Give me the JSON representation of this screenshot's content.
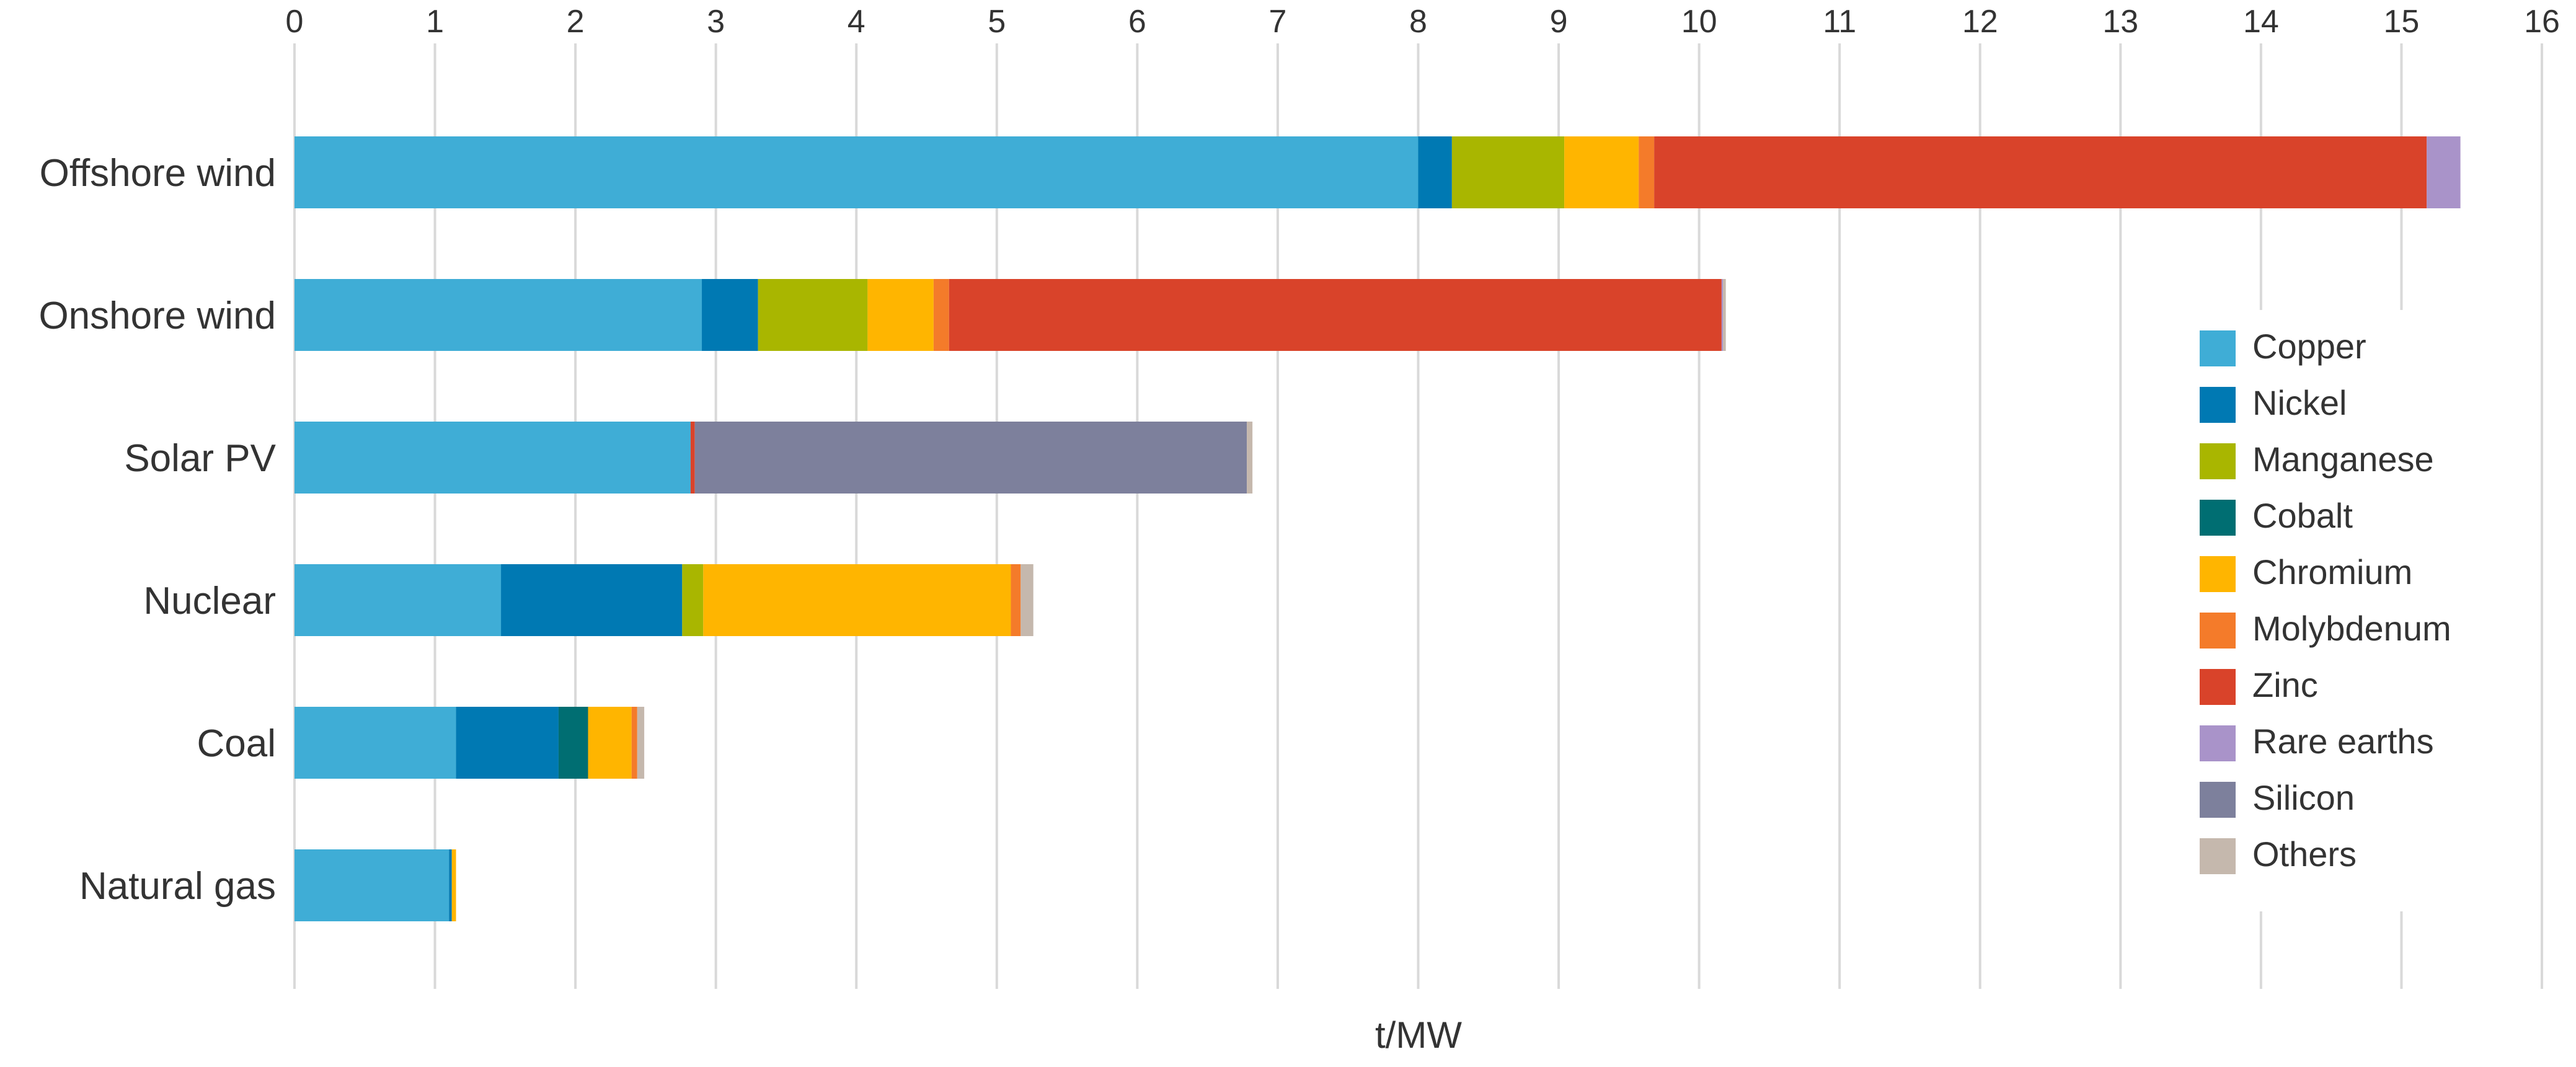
{
  "chart_data": {
    "type": "bar",
    "orientation": "horizontal",
    "stacked": true,
    "title": "",
    "xlabel": "t/MW",
    "ylabel": "",
    "xlim": [
      0,
      16
    ],
    "xticks": [
      "0",
      "1",
      "2",
      "3",
      "4",
      "5",
      "6",
      "7",
      "8",
      "9",
      "10",
      "11",
      "12",
      "13",
      "14",
      "15",
      "16"
    ],
    "grid": "vertical",
    "legend_position": "right",
    "categories": [
      "Offshore wind",
      "Onshore wind",
      "Solar PV",
      "Nuclear",
      "Coal",
      "Natural gas"
    ],
    "series": [
      {
        "name": "Copper",
        "color": "#3fadd6",
        "values": [
          8.0,
          2.9,
          2.82,
          1.47,
          1.15,
          1.1
        ]
      },
      {
        "name": "Nickel",
        "color": "#0079b3",
        "values": [
          0.24,
          0.4,
          0.0,
          1.29,
          0.73,
          0.02
        ]
      },
      {
        "name": "Manganese",
        "color": "#a9b600",
        "values": [
          0.8,
          0.78,
          0.0,
          0.15,
          0.0,
          0.0
        ]
      },
      {
        "name": "Cobalt",
        "color": "#006e72",
        "values": [
          0.0,
          0.0,
          0.0,
          0.0,
          0.21,
          0.0
        ]
      },
      {
        "name": "Chromium",
        "color": "#ffb500",
        "values": [
          0.53,
          0.47,
          0.0,
          2.19,
          0.31,
          0.03
        ]
      },
      {
        "name": "Molybdenum",
        "color": "#f47b2a",
        "values": [
          0.11,
          0.11,
          0.0,
          0.07,
          0.04,
          0.0
        ]
      },
      {
        "name": "Zinc",
        "color": "#d9432a",
        "values": [
          5.5,
          5.5,
          0.03,
          0.0,
          0.0,
          0.0
        ]
      },
      {
        "name": "Rare earths",
        "color": "#a993c9",
        "values": [
          0.24,
          0.01,
          0.0,
          0.0,
          0.0,
          0.0
        ]
      },
      {
        "name": "Silicon",
        "color": "#7d809c",
        "values": [
          0.0,
          0.0,
          3.93,
          0.0,
          0.0,
          0.0
        ]
      },
      {
        "name": "Others",
        "color": "#c5b8ad",
        "values": [
          0.0,
          0.02,
          0.04,
          0.09,
          0.05,
          0.0
        ]
      }
    ]
  }
}
